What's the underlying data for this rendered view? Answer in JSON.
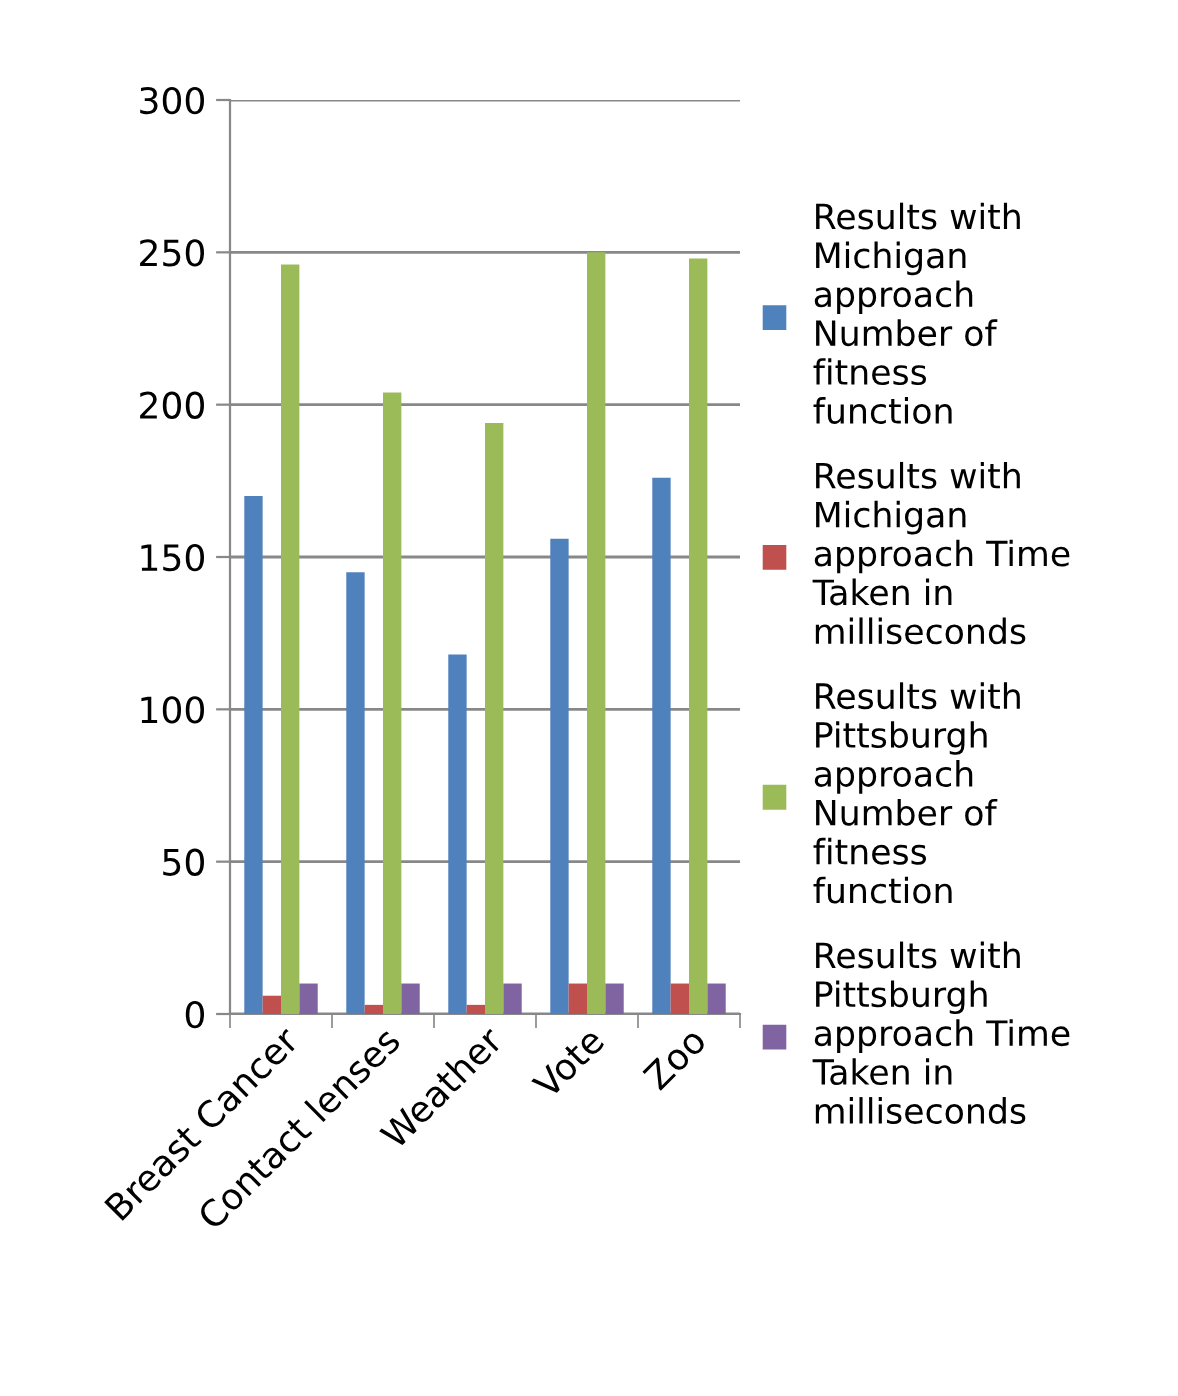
{
  "chart_data": {
    "type": "bar",
    "categories": [
      "Breast Cancer",
      "Contact lenses",
      "Weather",
      "Vote",
      "Zoo"
    ],
    "series": [
      {
        "name": "Results with Michigan approach Number of fitness function",
        "color": "#4f81bd",
        "values": [
          170,
          145,
          118,
          156,
          176
        ]
      },
      {
        "name": "Results with Michigan approach Time Taken in milliseconds",
        "color": "#c0504d",
        "values": [
          6,
          3,
          3,
          10,
          10
        ]
      },
      {
        "name": "Results with Pittsburgh approach Number of fitness function",
        "color": "#9bbb59",
        "values": [
          246,
          204,
          194,
          250,
          248
        ]
      },
      {
        "name": "Results with Pittsburgh approach Time Taken in milliseconds",
        "color": "#8064a2",
        "values": [
          10,
          10,
          10,
          10,
          10
        ]
      }
    ],
    "ylim": [
      0,
      300
    ],
    "yticks": [
      0,
      50,
      100,
      150,
      200,
      250,
      300
    ],
    "grid": "y",
    "legend": "right"
  }
}
